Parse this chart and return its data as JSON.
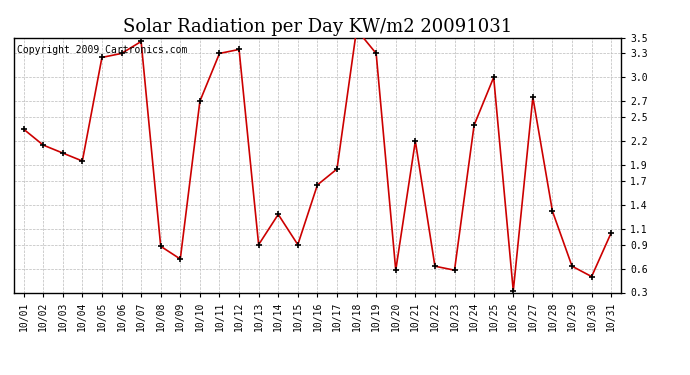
{
  "title": "Solar Radiation per Day KW/m2 20091031",
  "copyright": "Copyright 2009 Cartronics.com",
  "dates": [
    "10/01",
    "10/02",
    "10/03",
    "10/04",
    "10/05",
    "10/06",
    "10/07",
    "10/08",
    "10/09",
    "10/10",
    "10/11",
    "10/12",
    "10/13",
    "10/14",
    "10/15",
    "10/16",
    "10/17",
    "10/18",
    "10/19",
    "10/20",
    "10/21",
    "10/22",
    "10/23",
    "10/24",
    "10/25",
    "10/26",
    "10/27",
    "10/28",
    "10/29",
    "10/30",
    "10/31"
  ],
  "values": [
    2.35,
    2.15,
    2.05,
    1.95,
    3.25,
    3.3,
    3.45,
    0.88,
    0.72,
    2.7,
    3.3,
    3.35,
    0.9,
    1.28,
    0.9,
    1.65,
    1.85,
    3.6,
    3.3,
    0.58,
    2.2,
    0.63,
    0.58,
    2.4,
    3.0,
    0.32,
    2.75,
    1.32,
    0.63,
    0.5,
    1.05
  ],
  "line_color": "#cc0000",
  "marker": "+",
  "marker_color": "#000000",
  "ylim": [
    0.3,
    3.5
  ],
  "yticks": [
    0.3,
    0.6,
    0.9,
    1.1,
    1.4,
    1.7,
    1.9,
    2.2,
    2.5,
    2.7,
    3.0,
    3.3,
    3.5
  ],
  "background_color": "#ffffff",
  "grid_color": "#bbbbbb",
  "title_fontsize": 13,
  "tick_fontsize": 7,
  "copyright_fontsize": 7
}
